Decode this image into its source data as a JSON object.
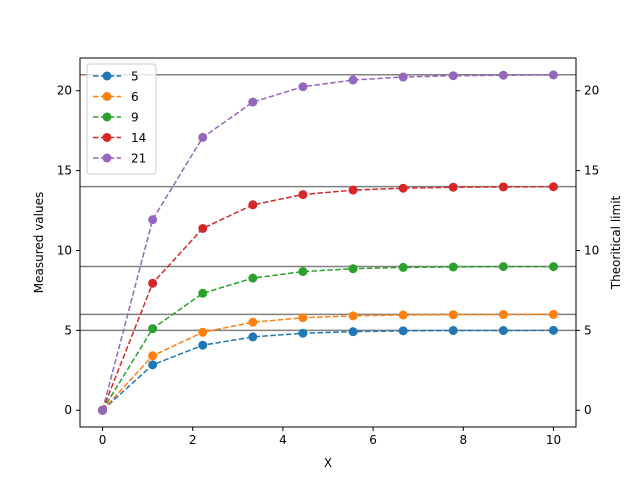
{
  "chart_data": {
    "type": "line",
    "xlabel": "X",
    "ylabel": "Measured values",
    "y2label": "Theoritical limit",
    "xlim": [
      -0.5,
      10.5
    ],
    "ylim": [
      -1.05,
      22.05
    ],
    "x_ticks": [
      0,
      2,
      4,
      6,
      8,
      10
    ],
    "y_ticks": [
      0,
      5,
      10,
      15,
      20
    ],
    "y2_ticks": [
      0,
      5,
      10,
      15,
      20
    ],
    "grid": false,
    "legend_position": "top-left",
    "x": [
      0,
      1.111,
      2.222,
      3.333,
      4.444,
      5.556,
      6.667,
      7.778,
      8.889,
      10
    ],
    "series": [
      {
        "name": "5",
        "color": "#1f77b4",
        "values": [
          0,
          2.84,
          4.07,
          4.59,
          4.82,
          4.92,
          4.97,
          4.99,
          4.99,
          5.0
        ]
      },
      {
        "name": "6",
        "color": "#ff7f0e",
        "values": [
          0,
          3.41,
          4.88,
          5.51,
          5.79,
          5.91,
          5.96,
          5.98,
          5.99,
          6.0
        ]
      },
      {
        "name": "9",
        "color": "#2ca02c",
        "values": [
          0,
          5.11,
          7.32,
          8.27,
          8.68,
          8.86,
          8.94,
          8.97,
          8.99,
          8.99
        ]
      },
      {
        "name": "14",
        "color": "#d62728",
        "values": [
          0,
          7.95,
          11.38,
          12.86,
          13.5,
          13.78,
          13.9,
          13.96,
          13.98,
          13.99
        ]
      },
      {
        "name": "21",
        "color": "#9467bd",
        "values": [
          0,
          11.93,
          17.08,
          19.29,
          20.25,
          20.67,
          20.86,
          20.94,
          20.97,
          20.99
        ]
      }
    ],
    "reference_lines": [
      5,
      6,
      9,
      14,
      21
    ],
    "reference_color": "#808080"
  }
}
